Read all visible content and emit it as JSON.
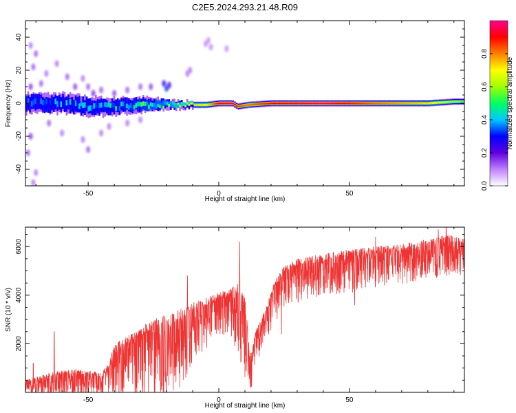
{
  "title": "C2E5.2024.293.21.48.R09",
  "chart_data": [
    {
      "type": "heatmap",
      "xlabel": "Height of straight line (km)",
      "ylabel": "Frequency (Hz)",
      "xlim": [
        -74,
        94
      ],
      "ylim": [
        -50,
        50
      ],
      "x_ticks": [
        -50,
        0,
        50
      ],
      "y_ticks": [
        -40,
        -20,
        0,
        20,
        40
      ],
      "grid": false,
      "colorbar": {
        "label": "Normalized spectral amplitude",
        "range": [
          0,
          1
        ],
        "ticks": [
          0.0,
          0.2,
          0.4,
          0.6,
          0.8
        ],
        "tick_labels": [
          "0.0",
          "0.2",
          "0.4",
          "0.6",
          "0.8"
        ],
        "colormap": [
          "#ffffff",
          "#c080ff",
          "#6000e0",
          "#0000ff",
          "#00c8ff",
          "#00ff60",
          "#a0ff00",
          "#ffff00",
          "#ff8000",
          "#ff0000",
          "#ff0090"
        ]
      },
      "band_profile": [
        {
          "x": -74,
          "center": 0,
          "half_width": 6,
          "amplitude": 0.3
        },
        {
          "x": -60,
          "center": 0,
          "half_width": 6,
          "amplitude": 0.38
        },
        {
          "x": -50,
          "center": -2,
          "half_width": 6,
          "amplitude": 0.4
        },
        {
          "x": -40,
          "center": -2,
          "half_width": 5,
          "amplitude": 0.42
        },
        {
          "x": -30,
          "center": -1,
          "half_width": 5,
          "amplitude": 0.46
        },
        {
          "x": -20,
          "center": -1,
          "half_width": 3,
          "amplitude": 0.52
        },
        {
          "x": -12,
          "center": -1,
          "half_width": 2,
          "amplitude": 0.6
        },
        {
          "x": -5,
          "center": -1,
          "half_width": 2,
          "amplitude": 0.7
        },
        {
          "x": 0,
          "center": 0,
          "half_width": 2,
          "amplitude": 0.92
        },
        {
          "x": 5,
          "center": 0,
          "half_width": 2,
          "amplitude": 0.95
        },
        {
          "x": 7,
          "center": -2,
          "half_width": 2,
          "amplitude": 0.85
        },
        {
          "x": 11,
          "center": -1,
          "half_width": 2,
          "amplitude": 0.8
        },
        {
          "x": 20,
          "center": 0,
          "half_width": 2,
          "amplitude": 0.9
        },
        {
          "x": 40,
          "center": 0,
          "half_width": 2,
          "amplitude": 0.95
        },
        {
          "x": 60,
          "center": 0,
          "half_width": 2,
          "amplitude": 0.82
        },
        {
          "x": 80,
          "center": 0,
          "half_width": 2,
          "amplitude": 0.72
        },
        {
          "x": 90,
          "center": 1,
          "half_width": 2,
          "amplitude": 0.6
        },
        {
          "x": 94,
          "center": 1,
          "half_width": 2,
          "amplitude": 0.55
        }
      ],
      "scatter_blobs": [
        {
          "x": -72,
          "y": 35,
          "amplitude": 0.1
        },
        {
          "x": -71,
          "y": 22,
          "amplitude": 0.12
        },
        {
          "x": -70,
          "y": 30,
          "amplitude": 0.12
        },
        {
          "x": -72,
          "y": 10,
          "amplitude": 0.15
        },
        {
          "x": -73,
          "y": -30,
          "amplitude": 0.12
        },
        {
          "x": -70,
          "y": -42,
          "amplitude": 0.1
        },
        {
          "x": -72,
          "y": -20,
          "amplitude": 0.15
        },
        {
          "x": -71,
          "y": -48,
          "amplitude": 0.1
        },
        {
          "x": -68,
          "y": 12,
          "amplitude": 0.12
        },
        {
          "x": -66,
          "y": 18,
          "amplitude": 0.1
        },
        {
          "x": -62,
          "y": 24,
          "amplitude": 0.1
        },
        {
          "x": -58,
          "y": 16,
          "amplitude": 0.12
        },
        {
          "x": -55,
          "y": 10,
          "amplitude": 0.14
        },
        {
          "x": -52,
          "y": 15,
          "amplitude": 0.1
        },
        {
          "x": -50,
          "y": 10,
          "amplitude": 0.12
        },
        {
          "x": -48,
          "y": 6,
          "amplitude": 0.16
        },
        {
          "x": -45,
          "y": 8,
          "amplitude": 0.12
        },
        {
          "x": -40,
          "y": 6,
          "amplitude": 0.14
        },
        {
          "x": -35,
          "y": 8,
          "amplitude": 0.12
        },
        {
          "x": -30,
          "y": 10,
          "amplitude": 0.12
        },
        {
          "x": -26,
          "y": 10,
          "amplitude": 0.14
        },
        {
          "x": -21,
          "y": 12,
          "amplitude": 0.25
        },
        {
          "x": -20,
          "y": 9,
          "amplitude": 0.3
        },
        {
          "x": -19,
          "y": 11,
          "amplitude": 0.22
        },
        {
          "x": -12,
          "y": 18,
          "amplitude": 0.1
        },
        {
          "x": -11,
          "y": 20,
          "amplitude": 0.1
        },
        {
          "x": -5,
          "y": 36,
          "amplitude": 0.08
        },
        {
          "x": -4,
          "y": 38,
          "amplitude": 0.08
        },
        {
          "x": -3,
          "y": 34,
          "amplitude": 0.08
        },
        {
          "x": 3,
          "y": 33,
          "amplitude": 0.08
        },
        {
          "x": -50,
          "y": -28,
          "amplitude": 0.12
        },
        {
          "x": -52,
          "y": -22,
          "amplitude": 0.1
        },
        {
          "x": -60,
          "y": -18,
          "amplitude": 0.1
        },
        {
          "x": -65,
          "y": -12,
          "amplitude": 0.12
        },
        {
          "x": -42,
          "y": -14,
          "amplitude": 0.1
        },
        {
          "x": -35,
          "y": -12,
          "amplitude": 0.1
        },
        {
          "x": -30,
          "y": -10,
          "amplitude": 0.1
        },
        {
          "x": -45,
          "y": -18,
          "amplitude": 0.1
        }
      ]
    },
    {
      "type": "line",
      "xlabel": "Height of straight line (km)",
      "ylabel": "SNR (10 * v/v)",
      "xlim": [
        -74,
        94
      ],
      "ylim": [
        0,
        6800
      ],
      "x_ticks": [
        -50,
        0,
        50
      ],
      "y_ticks": [
        2000,
        4000,
        6000
      ],
      "grid": false,
      "line_color": "#ee3333",
      "series": [
        {
          "envelope": [
            {
              "x": -74,
              "upper": 500,
              "lower": 60
            },
            {
              "x": -65,
              "upper": 800,
              "lower": 80
            },
            {
              "x": -55,
              "upper": 1000,
              "lower": 100
            },
            {
              "x": -45,
              "upper": 800,
              "lower": 80
            },
            {
              "x": -42,
              "upper": 1200,
              "lower": 150
            },
            {
              "x": -40,
              "upper": 2000,
              "lower": 400
            },
            {
              "x": -35,
              "upper": 2300,
              "lower": 500
            },
            {
              "x": -30,
              "upper": 2600,
              "lower": 500
            },
            {
              "x": -25,
              "upper": 3000,
              "lower": 600
            },
            {
              "x": -20,
              "upper": 3200,
              "lower": 800
            },
            {
              "x": -15,
              "upper": 3400,
              "lower": 1100
            },
            {
              "x": -10,
              "upper": 3700,
              "lower": 1800
            },
            {
              "x": -5,
              "upper": 3900,
              "lower": 2400
            },
            {
              "x": 0,
              "upper": 4100,
              "lower": 2900
            },
            {
              "x": 5,
              "upper": 4300,
              "lower": 2800
            },
            {
              "x": 8,
              "upper": 4600,
              "lower": 2300
            },
            {
              "x": 10,
              "upper": 4000,
              "lower": 1500
            },
            {
              "x": 12,
              "upper": 1500,
              "lower": 300
            },
            {
              "x": 14,
              "upper": 2500,
              "lower": 1500
            },
            {
              "x": 18,
              "upper": 3500,
              "lower": 2500
            },
            {
              "x": 22,
              "upper": 4800,
              "lower": 3500
            },
            {
              "x": 26,
              "upper": 5300,
              "lower": 4000
            },
            {
              "x": 30,
              "upper": 5500,
              "lower": 4200
            },
            {
              "x": 40,
              "upper": 5700,
              "lower": 4500
            },
            {
              "x": 50,
              "upper": 5900,
              "lower": 4600
            },
            {
              "x": 60,
              "upper": 6000,
              "lower": 4800
            },
            {
              "x": 70,
              "upper": 6100,
              "lower": 4900
            },
            {
              "x": 80,
              "upper": 6300,
              "lower": 5100
            },
            {
              "x": 88,
              "upper": 6500,
              "lower": 5300
            },
            {
              "x": 94,
              "upper": 6300,
              "lower": 5200
            }
          ],
          "spikes": [
            {
              "x": -71,
              "y": 1200
            },
            {
              "x": -63,
              "y": 2500
            },
            {
              "x": -28,
              "y": 2800
            },
            {
              "x": -12,
              "y": 4800
            },
            {
              "x": 8,
              "y": 6200
            },
            {
              "x": 12,
              "y": 200
            },
            {
              "x": 30,
              "y": 5200
            },
            {
              "x": 60,
              "y": 6400
            },
            {
              "x": 84,
              "y": 6700
            },
            {
              "x": 87,
              "y": 6900
            },
            {
              "x": 24,
              "y": 2400
            },
            {
              "x": 52,
              "y": 3600
            }
          ]
        }
      ]
    }
  ]
}
